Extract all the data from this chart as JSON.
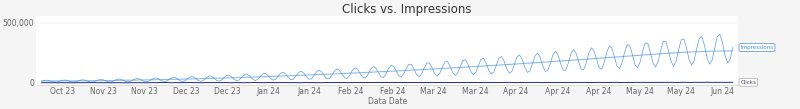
{
  "title": "Clicks vs. Impressions",
  "xlabel": "Data Date",
  "ytick_labels": [
    "0",
    "500,000"
  ],
  "yticks": [
    0,
    500000
  ],
  "x_tick_labels": [
    "Oct 23",
    "Nov 23",
    "Nov 23",
    "Dec 23",
    "Dec 23",
    "Jan 24",
    "Jan 24",
    "Feb 24",
    "Feb 24",
    "Mar 24",
    "Mar 24",
    "Apr 24",
    "Apr 24",
    "Apr 24",
    "May 24",
    "May 24",
    "Jun 24"
  ],
  "impressions_color": "#4a90d9",
  "impressions_trend_color": "#7ab0e8",
  "clicks_color": "#1a237e",
  "background_color": "#f5f5f5",
  "plot_background": "#ffffff",
  "title_fontsize": 8.5,
  "tick_fontsize": 5.5,
  "label_fontsize": 5.5,
  "ylim": [
    -15000,
    560000
  ],
  "n_points": 270
}
